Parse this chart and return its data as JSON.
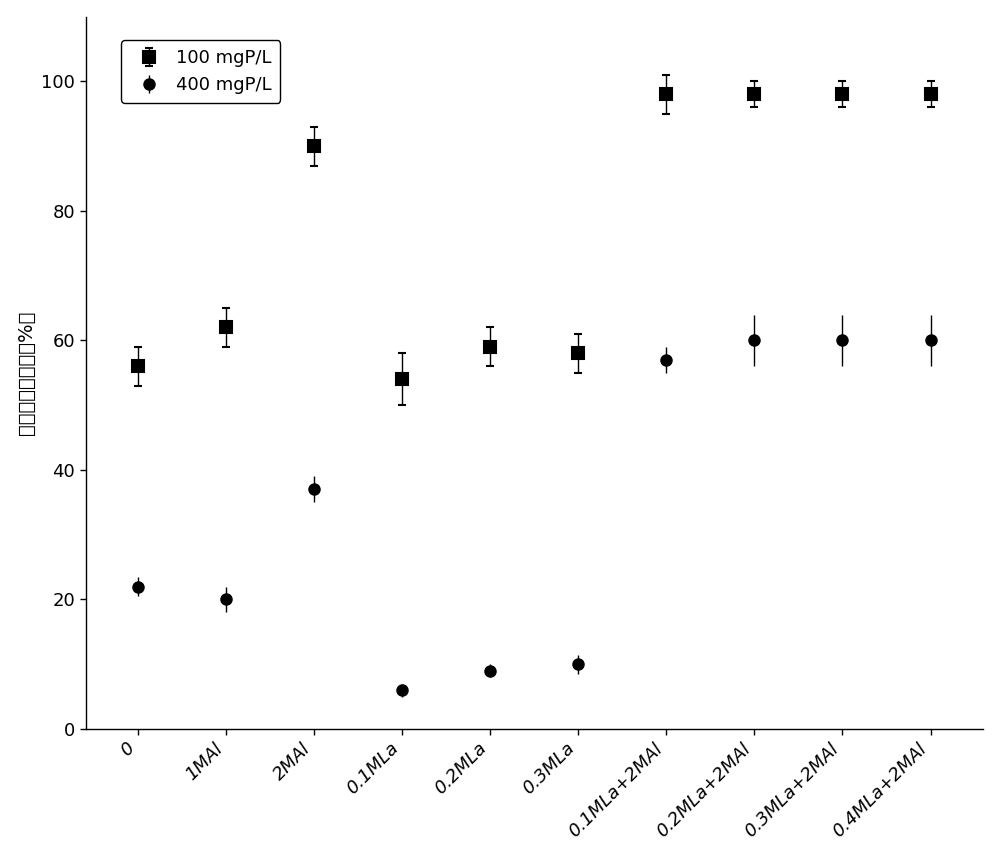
{
  "categories": [
    "0",
    "1MAl",
    "2MAl",
    "0.1MLa",
    "0.2MLa",
    "0.3MLa",
    "0.1MLa+2MAl",
    "0.2MLa+2MAl",
    "0.3MLa+2MAl",
    "0.4MLa+2MAl"
  ],
  "series_100": {
    "label": "100 mgP/L",
    "values": [
      56,
      62,
      90,
      54,
      59,
      58,
      98,
      98,
      98,
      98
    ],
    "yerr": [
      3,
      3,
      3,
      4,
      3,
      3,
      3,
      2,
      2,
      2
    ],
    "marker": "s",
    "color": "#000000"
  },
  "series_400": {
    "label": "400 mgP/L",
    "values": [
      22,
      20,
      37,
      6,
      9,
      10,
      57,
      60,
      60,
      60
    ],
    "yerr": [
      1.5,
      2,
      2,
      1,
      1,
      1.5,
      2,
      4,
      4,
      4
    ],
    "marker": "o",
    "color": "#000000"
  },
  "ylabel": "磷的去除百分比（%）",
  "ylim": [
    0,
    110
  ],
  "yticks": [
    0,
    20,
    40,
    60,
    80,
    100
  ],
  "background_color": "#ffffff",
  "marker_size": 8,
  "capsize": 3,
  "elinewidth": 1.0,
  "tick_fontsize": 13,
  "label_fontsize": 14,
  "legend_fontsize": 13
}
